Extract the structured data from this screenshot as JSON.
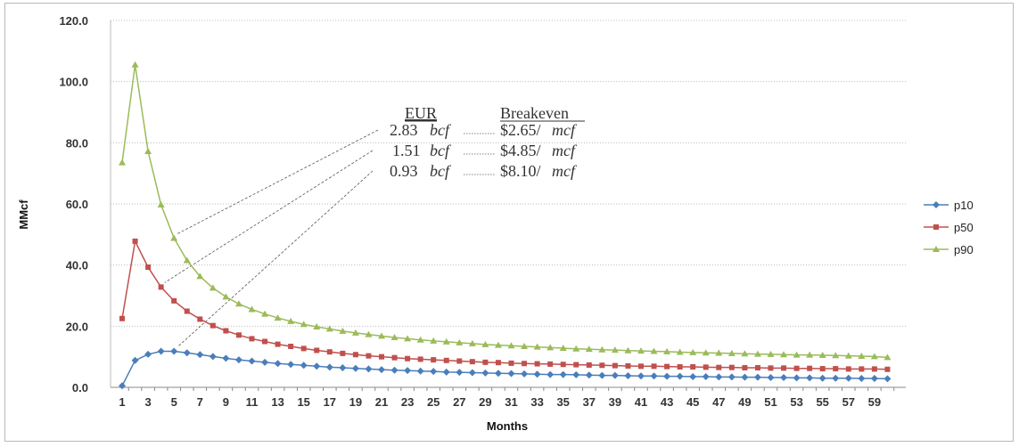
{
  "chart_data": {
    "type": "line",
    "ylabel": "MMcf",
    "xlabel": "Months",
    "ylim": [
      0,
      120
    ],
    "yticks": [
      "0.0",
      "20.0",
      "40.0",
      "60.0",
      "80.0",
      "100.0",
      "120.0"
    ],
    "xlim": [
      1,
      60
    ],
    "xtick_labels": [
      "1",
      "3",
      "5",
      "7",
      "9",
      "11",
      "13",
      "15",
      "17",
      "19",
      "21",
      "23",
      "25",
      "27",
      "29",
      "31",
      "33",
      "35",
      "37",
      "39",
      "41",
      "43",
      "45",
      "47",
      "49",
      "51",
      "53",
      "55",
      "57",
      "59"
    ],
    "grid": true,
    "legend_position": "right",
    "series": [
      {
        "name": "p10",
        "color": "#4a7ebb",
        "marker": "diamond",
        "values": [
          0.5,
          8.8,
          10.8,
          11.8,
          11.8,
          11.3,
          10.7,
          10.1,
          9.5,
          9.0,
          8.6,
          8.2,
          7.8,
          7.5,
          7.2,
          6.9,
          6.6,
          6.4,
          6.2,
          6.0,
          5.8,
          5.6,
          5.5,
          5.3,
          5.2,
          5.0,
          4.9,
          4.8,
          4.7,
          4.6,
          4.5,
          4.4,
          4.3,
          4.2,
          4.2,
          4.1,
          4.0,
          3.9,
          3.9,
          3.8,
          3.7,
          3.7,
          3.6,
          3.6,
          3.5,
          3.5,
          3.4,
          3.4,
          3.3,
          3.3,
          3.2,
          3.2,
          3.1,
          3.1,
          3.0,
          3.0,
          3.0,
          2.9,
          2.9,
          2.8
        ]
      },
      {
        "name": "p50",
        "color": "#c0504d",
        "marker": "square",
        "values": [
          22.5,
          47.8,
          39.3,
          32.8,
          28.3,
          24.9,
          22.3,
          20.2,
          18.5,
          17.1,
          15.9,
          15.0,
          14.1,
          13.4,
          12.7,
          12.1,
          11.6,
          11.1,
          10.7,
          10.3,
          10.0,
          9.7,
          9.4,
          9.2,
          9.0,
          8.8,
          8.6,
          8.4,
          8.2,
          8.1,
          7.9,
          7.8,
          7.7,
          7.6,
          7.5,
          7.4,
          7.3,
          7.2,
          7.1,
          7.0,
          6.9,
          6.9,
          6.8,
          6.7,
          6.7,
          6.6,
          6.5,
          6.5,
          6.4,
          6.4,
          6.3,
          6.3,
          6.2,
          6.2,
          6.1,
          6.1,
          6.0,
          6.0,
          6.0,
          5.9
        ]
      },
      {
        "name": "p90",
        "color": "#9bbb59",
        "marker": "triangle",
        "values": [
          73.5,
          105.5,
          77.2,
          59.7,
          48.8,
          41.5,
          36.3,
          32.5,
          29.6,
          27.3,
          25.5,
          24.0,
          22.7,
          21.6,
          20.6,
          19.8,
          19.1,
          18.4,
          17.8,
          17.3,
          16.8,
          16.3,
          15.9,
          15.5,
          15.2,
          14.9,
          14.6,
          14.3,
          14.0,
          13.8,
          13.6,
          13.4,
          13.2,
          13.0,
          12.8,
          12.6,
          12.5,
          12.3,
          12.2,
          12.0,
          11.9,
          11.8,
          11.7,
          11.5,
          11.4,
          11.3,
          11.2,
          11.1,
          11.0,
          10.9,
          10.8,
          10.7,
          10.6,
          10.6,
          10.5,
          10.4,
          10.3,
          10.2,
          10.1,
          9.8
        ]
      }
    ],
    "annotation": {
      "header_eur": "EUR",
      "header_breakeven": "Breakeven",
      "rows": [
        {
          "eur_value": "2.83",
          "eur_unit": "bcf",
          "price": "$2.65/",
          "price_unit": "mcf",
          "target_series": "p90",
          "target_month": 5
        },
        {
          "eur_value": "1.51",
          "eur_unit": "bcf",
          "price": "$4.85/",
          "price_unit": "mcf",
          "target_series": "p50",
          "target_month": 4
        },
        {
          "eur_value": "0.93",
          "eur_unit": "bcf",
          "price": "$8.10/",
          "price_unit": "mcf",
          "target_series": "p10",
          "target_month": 5
        }
      ]
    }
  }
}
